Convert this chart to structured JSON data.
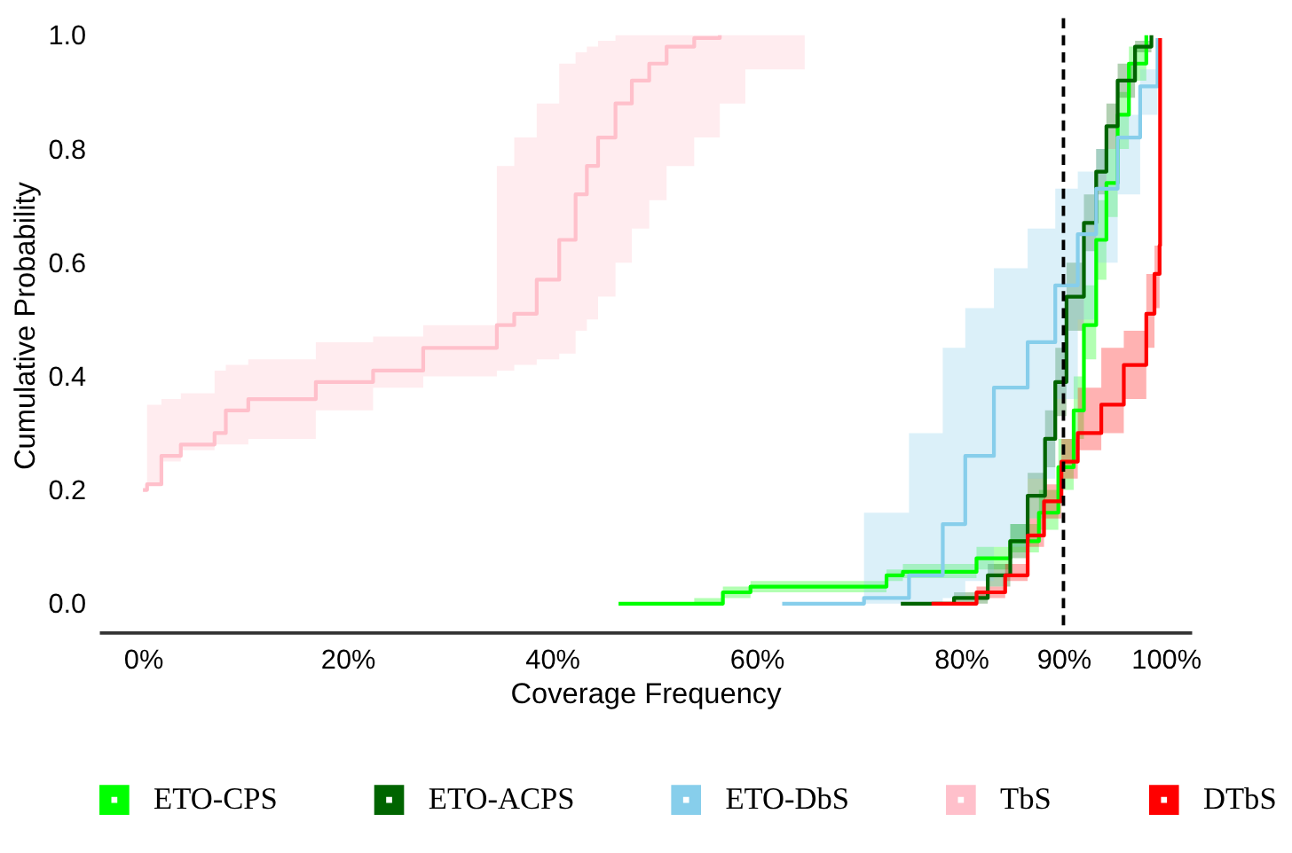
{
  "chart_data": {
    "type": "step",
    "xlabel": "Coverage Frequency",
    "ylabel": "Cumulative Probability",
    "xlim": [
      -4.3,
      102.5
    ],
    "ylim": [
      -0.05,
      1.03
    ],
    "xticks": [
      {
        "value": 0,
        "label": "0%"
      },
      {
        "value": 20,
        "label": "20%"
      },
      {
        "value": 40,
        "label": "40%"
      },
      {
        "value": 60,
        "label": "60%"
      },
      {
        "value": 80,
        "label": "80%"
      },
      {
        "value": 90,
        "label": "90%"
      },
      {
        "value": 100,
        "label": "100%"
      }
    ],
    "yticks": [
      {
        "value": 0,
        "label": "0.0"
      },
      {
        "value": 0.2,
        "label": "0.2"
      },
      {
        "value": 0.4,
        "label": "0.4"
      },
      {
        "value": 0.6,
        "label": "0.6"
      },
      {
        "value": 0.8,
        "label": "0.8"
      },
      {
        "value": 1.0,
        "label": "1.0"
      }
    ],
    "grid": false,
    "legend": "bottom",
    "line_style": "solid",
    "ref_lines": [
      {
        "axis": "x",
        "value": 90,
        "color": "#000000",
        "line_style": "dashed"
      }
    ],
    "series": [
      {
        "name": "ETO-CPS",
        "color": "#00ff00",
        "x": [
          46.5,
          53.9,
          56.7,
          59.4,
          72.7,
          74.3,
          81.5,
          84.8,
          87.6,
          89.5,
          91.0,
          92.0,
          93.2,
          94.2,
          95.3,
          96.4,
          98.1
        ],
        "values": [
          0.0,
          0.0,
          0.02,
          0.03,
          0.05,
          0.056,
          0.08,
          0.11,
          0.16,
          0.24,
          0.34,
          0.49,
          0.64,
          0.74,
          0.86,
          0.95,
          1.0
        ],
        "lower": [
          0.0,
          0.0,
          0.01,
          0.02,
          0.04,
          0.045,
          0.06,
          0.09,
          0.13,
          0.2,
          0.29,
          0.43,
          0.57,
          0.68,
          0.8,
          0.92,
          1.0
        ],
        "upper": [
          0.0,
          0.01,
          0.03,
          0.04,
          0.06,
          0.07,
          0.1,
          0.14,
          0.2,
          0.29,
          0.4,
          0.56,
          0.71,
          0.8,
          0.9,
          0.98,
          1.0
        ]
      },
      {
        "name": "ETO-ACPS",
        "color": "#006400",
        "x": [
          74.1,
          79.3,
          82.6,
          84.8,
          86.5,
          88.2,
          89.2,
          90.3,
          92.0,
          93.2,
          94.2,
          95.3,
          97.0,
          98.6
        ],
        "values": [
          0.0,
          0.01,
          0.05,
          0.11,
          0.19,
          0.29,
          0.39,
          0.54,
          0.67,
          0.76,
          0.84,
          0.92,
          0.98,
          1.0
        ],
        "lower": [
          0.0,
          0.0,
          0.03,
          0.08,
          0.15,
          0.24,
          0.33,
          0.48,
          0.62,
          0.72,
          0.8,
          0.89,
          0.97,
          1.0
        ],
        "upper": [
          0.0,
          0.02,
          0.07,
          0.14,
          0.23,
          0.34,
          0.45,
          0.6,
          0.72,
          0.8,
          0.88,
          0.95,
          0.99,
          1.0
        ]
      },
      {
        "name": "ETO-DbS",
        "color": "#87ceeb",
        "x": [
          62.5,
          70.5,
          74.9,
          78.2,
          80.4,
          83.2,
          86.5,
          89.2,
          91.4,
          93.2,
          95.3,
          97.5,
          99.2
        ],
        "values": [
          0.0,
          0.01,
          0.05,
          0.14,
          0.26,
          0.38,
          0.46,
          0.56,
          0.65,
          0.73,
          0.82,
          0.91,
          0.995
        ],
        "lower": [
          0.0,
          0.0,
          0.0,
          0.01,
          0.04,
          0.1,
          0.22,
          0.36,
          0.5,
          0.6,
          0.72,
          0.86,
          0.99
        ],
        "upper": [
          0.0,
          0.16,
          0.3,
          0.45,
          0.52,
          0.59,
          0.66,
          0.73,
          0.76,
          0.8,
          0.86,
          0.94,
          1.0
        ]
      },
      {
        "name": "TbS",
        "color": "#ffc0cb",
        "x": [
          0.0,
          0.4,
          1.8,
          3.7,
          7.0,
          8.1,
          10.3,
          16.9,
          22.5,
          27.4,
          34.6,
          36.3,
          38.5,
          40.7,
          42.3,
          43.4,
          44.5,
          46.2,
          47.8,
          49.5,
          51.2,
          53.9,
          56.4,
          58.9,
          64.7
        ],
        "values": [
          0.2,
          0.21,
          0.26,
          0.28,
          0.3,
          0.34,
          0.36,
          0.39,
          0.41,
          0.45,
          0.49,
          0.51,
          0.57,
          0.64,
          0.72,
          0.77,
          0.82,
          0.88,
          0.92,
          0.95,
          0.98,
          0.995,
          1.0,
          null,
          null
        ],
        "lower": [
          0.2,
          0.21,
          0.25,
          0.27,
          0.28,
          0.28,
          0.29,
          0.34,
          0.38,
          0.4,
          0.41,
          0.42,
          0.43,
          0.44,
          0.48,
          0.5,
          0.54,
          0.6,
          0.66,
          0.71,
          0.77,
          0.82,
          0.88,
          0.94,
          1.0
        ],
        "upper": [
          0.2,
          0.35,
          0.36,
          0.37,
          0.41,
          0.42,
          0.43,
          0.46,
          0.47,
          0.49,
          0.77,
          0.82,
          0.88,
          0.95,
          0.97,
          0.98,
          0.99,
          1.0,
          1.0,
          1.0,
          1.0,
          1.0,
          1.0,
          1.0,
          1.0
        ]
      },
      {
        "name": "DTbS",
        "color": "#ff0000",
        "x": [
          77.1,
          81.5,
          84.3,
          86.5,
          88.1,
          89.8,
          91.4,
          93.7,
          95.9,
          98.1,
          98.9,
          99.4,
          99.45
        ],
        "values": [
          0.0,
          0.02,
          0.05,
          0.12,
          0.18,
          0.25,
          0.3,
          0.35,
          0.42,
          0.51,
          0.58,
          0.63,
          0.995
        ],
        "lower": [
          0.0,
          0.01,
          0.04,
          0.1,
          0.15,
          0.22,
          0.27,
          0.3,
          0.36,
          0.45,
          0.52,
          0.6,
          0.995
        ],
        "upper": [
          0.0,
          0.03,
          0.07,
          0.15,
          0.21,
          0.29,
          0.38,
          0.45,
          0.48,
          0.58,
          0.63,
          0.63,
          0.995
        ]
      }
    ]
  }
}
